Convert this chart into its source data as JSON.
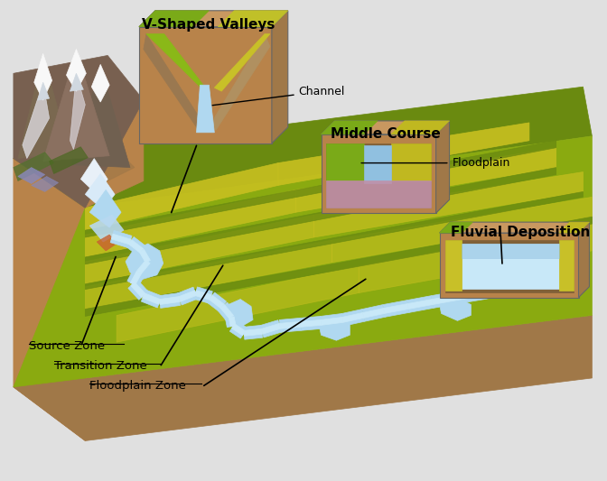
{
  "bg_color": "#e0e0e0",
  "labels": {
    "v_shaped": "V-Shaped Valleys",
    "channel": "Channel",
    "middle_course": "Middle Course",
    "floodplain": "Floodplain",
    "fluvial_deposition": "Fluvial Deposition",
    "source_zone": "Source Zone",
    "transition_zone": "Transition Zone",
    "floodplain_zone": "Floodplain Zone"
  },
  "colors": {
    "yellow_green": "#c8c020",
    "olive_green": "#8aaa10",
    "dark_green": "#6a8a10",
    "bright_green": "#a8c030",
    "soil_brown": "#b8834a",
    "soil_mid": "#a07848",
    "soil_dark": "#806038",
    "soil_light": "#c89860",
    "water_blue": "#b0d8f0",
    "water_mid": "#90c0e0",
    "water_light": "#c8e8f8",
    "mountain_white": "#f8f8f8",
    "mountain_gray": "#c8c8c8",
    "rock_brown": "#786050",
    "snow_shadow": "#d0d8e0",
    "purple_flower": "#8888b8",
    "bg": "#e0e0e0"
  }
}
